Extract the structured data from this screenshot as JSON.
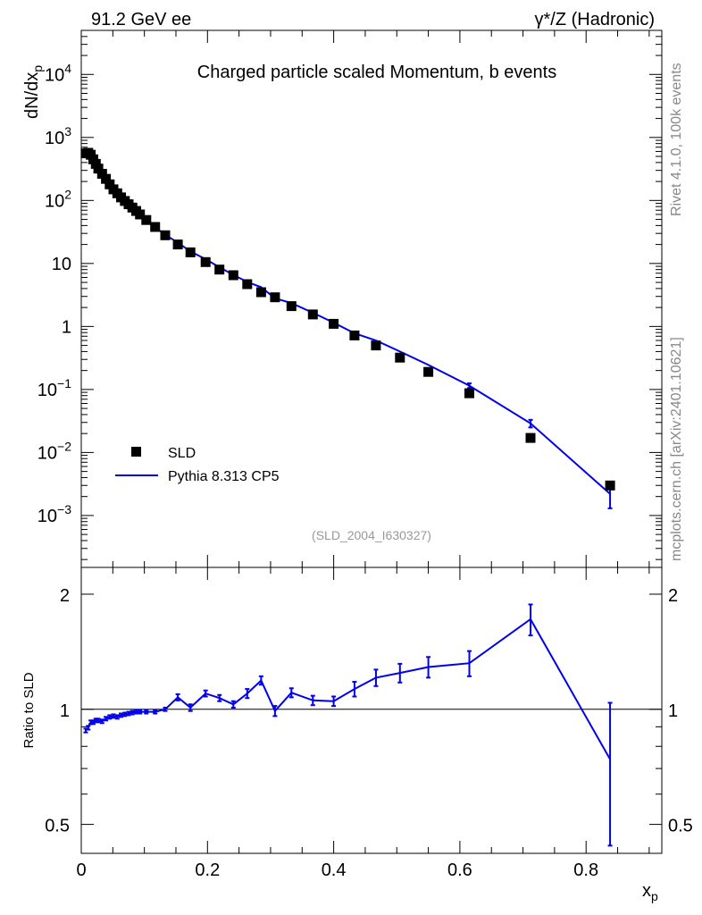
{
  "header": {
    "left": "91.2 GeV ee",
    "right": "γ*/Z (Hadronic)"
  },
  "side": {
    "rivet": "Rivet 4.1.0,  100k events",
    "mcplots": "mcplots.cern.ch [arXiv:2401.10621]"
  },
  "colors": {
    "mc": "#0000ee",
    "data": "#000000",
    "frame": "#000000",
    "note": "#999999",
    "side": "#888888"
  },
  "chart_data": [
    {
      "type": "scatter",
      "role": "main",
      "title": "Charged particle scaled Momentum, b events",
      "analysis_label": "(SLD_2004_I630327)",
      "ylabel": "dN/dx",
      "ylabel_sub": "p",
      "yscale": "log",
      "ylim": [
        0.00015,
        50000
      ],
      "xlim": [
        0,
        0.92
      ],
      "legend": {
        "position": "lower-left",
        "data_label": "SLD",
        "mc_label": "Pythia 8.313 CP5"
      },
      "x": [
        0.007,
        0.011,
        0.015,
        0.019,
        0.023,
        0.027,
        0.033,
        0.039,
        0.045,
        0.051,
        0.057,
        0.063,
        0.069,
        0.075,
        0.081,
        0.087,
        0.093,
        0.103,
        0.117,
        0.133,
        0.153,
        0.173,
        0.197,
        0.219,
        0.241,
        0.263,
        0.285,
        0.307,
        0.333,
        0.367,
        0.4,
        0.433,
        0.467,
        0.505,
        0.55,
        0.615,
        0.712,
        0.838
      ],
      "data": [
        560,
        570,
        530,
        450,
        380,
        320,
        265,
        220,
        180,
        150,
        130,
        112,
        98,
        87,
        77,
        68,
        60,
        49,
        38,
        28,
        20,
        15,
        10.5,
        8,
        6.5,
        4.7,
        3.5,
        2.9,
        2.1,
        1.55,
        1.1,
        0.72,
        0.5,
        0.32,
        0.19,
        0.087,
        0.017,
        0.003
      ],
      "mc": [
        495,
        510,
        490,
        425,
        360,
        305,
        252,
        208,
        173,
        145,
        126,
        110,
        95,
        85,
        76,
        67,
        59,
        48,
        37.5,
        28.5,
        21.5,
        15.5,
        11.7,
        8.7,
        6.6,
        5.1,
        4.2,
        2.8,
        2.35,
        1.65,
        1.15,
        0.78,
        0.6,
        0.4,
        0.245,
        0.115,
        0.029,
        0.0022
      ],
      "mc_err_lo": [
        0,
        0,
        0,
        0,
        0,
        0,
        0,
        0,
        0,
        0,
        0,
        0,
        0,
        0,
        0,
        0,
        0,
        0,
        0,
        0,
        0,
        0,
        0,
        0,
        0,
        0,
        0,
        0,
        0,
        0,
        0,
        0,
        0,
        0,
        0,
        0.01,
        0.004,
        0.0009
      ],
      "mc_err_hi": [
        0,
        0,
        0,
        0,
        0,
        0,
        0,
        0,
        0,
        0,
        0,
        0,
        0,
        0,
        0,
        0,
        0,
        0,
        0,
        0,
        0,
        0,
        0,
        0,
        0,
        0,
        0,
        0,
        0,
        0,
        0,
        0,
        0,
        0,
        0,
        0.01,
        0.004,
        0.0008
      ],
      "xticks": [
        0,
        0.2,
        0.4,
        0.6,
        0.8
      ],
      "yticks": [
        {
          "v": 0.001,
          "base": "10",
          "exp": "−3"
        },
        {
          "v": 0.01,
          "base": "10",
          "exp": "−2"
        },
        {
          "v": 0.1,
          "base": "10",
          "exp": "−1"
        },
        {
          "v": 1,
          "base": "1",
          "exp": ""
        },
        {
          "v": 10,
          "base": "10",
          "exp": ""
        },
        {
          "v": 100,
          "base": "10",
          "exp": "2"
        },
        {
          "v": 1000,
          "base": "10",
          "exp": "3"
        },
        {
          "v": 10000,
          "base": "10",
          "exp": "4"
        }
      ]
    },
    {
      "type": "line",
      "role": "ratio",
      "ylabel": "Ratio to SLD",
      "xlabel": "x",
      "xlabel_sub": "p",
      "yscale": "log",
      "ylim": [
        0.42,
        2.35
      ],
      "xlim": [
        0,
        0.92
      ],
      "x": [
        0.007,
        0.011,
        0.015,
        0.019,
        0.023,
        0.027,
        0.033,
        0.039,
        0.045,
        0.051,
        0.057,
        0.063,
        0.069,
        0.075,
        0.081,
        0.087,
        0.093,
        0.103,
        0.117,
        0.133,
        0.153,
        0.173,
        0.197,
        0.219,
        0.241,
        0.263,
        0.285,
        0.307,
        0.333,
        0.367,
        0.4,
        0.433,
        0.467,
        0.505,
        0.55,
        0.615,
        0.712,
        0.838
      ],
      "ratio": [
        0.88,
        0.895,
        0.925,
        0.925,
        0.935,
        0.935,
        0.93,
        0.945,
        0.955,
        0.96,
        0.955,
        0.965,
        0.97,
        0.975,
        0.98,
        0.985,
        0.985,
        0.985,
        0.985,
        1.0,
        1.075,
        1.01,
        1.1,
        1.07,
        1.03,
        1.1,
        1.19,
        0.99,
        1.105,
        1.055,
        1.05,
        1.13,
        1.21,
        1.245,
        1.29,
        1.32,
        1.72,
        0.74
      ],
      "err": [
        0.01,
        0.01,
        0.01,
        0.01,
        0.01,
        0.01,
        0.01,
        0.01,
        0.01,
        0.01,
        0.01,
        0.01,
        0.01,
        0.01,
        0.01,
        0.01,
        0.01,
        0.01,
        0.01,
        0.01,
        0.02,
        0.02,
        0.02,
        0.02,
        0.02,
        0.03,
        0.03,
        0.03,
        0.03,
        0.03,
        0.03,
        0.05,
        0.06,
        0.07,
        0.08,
        0.1,
        0.16,
        0.3
      ],
      "yticks": [
        {
          "v": 0.5,
          "label": "0.5"
        },
        {
          "v": 1,
          "label": "1"
        },
        {
          "v": 2,
          "label": "2"
        }
      ],
      "xticks": [
        {
          "v": 0,
          "label": "0"
        },
        {
          "v": 0.2,
          "label": "0.2"
        },
        {
          "v": 0.4,
          "label": "0.4"
        },
        {
          "v": 0.6,
          "label": "0.6"
        },
        {
          "v": 0.8,
          "label": "0.8"
        }
      ],
      "reference_line": 1
    }
  ]
}
